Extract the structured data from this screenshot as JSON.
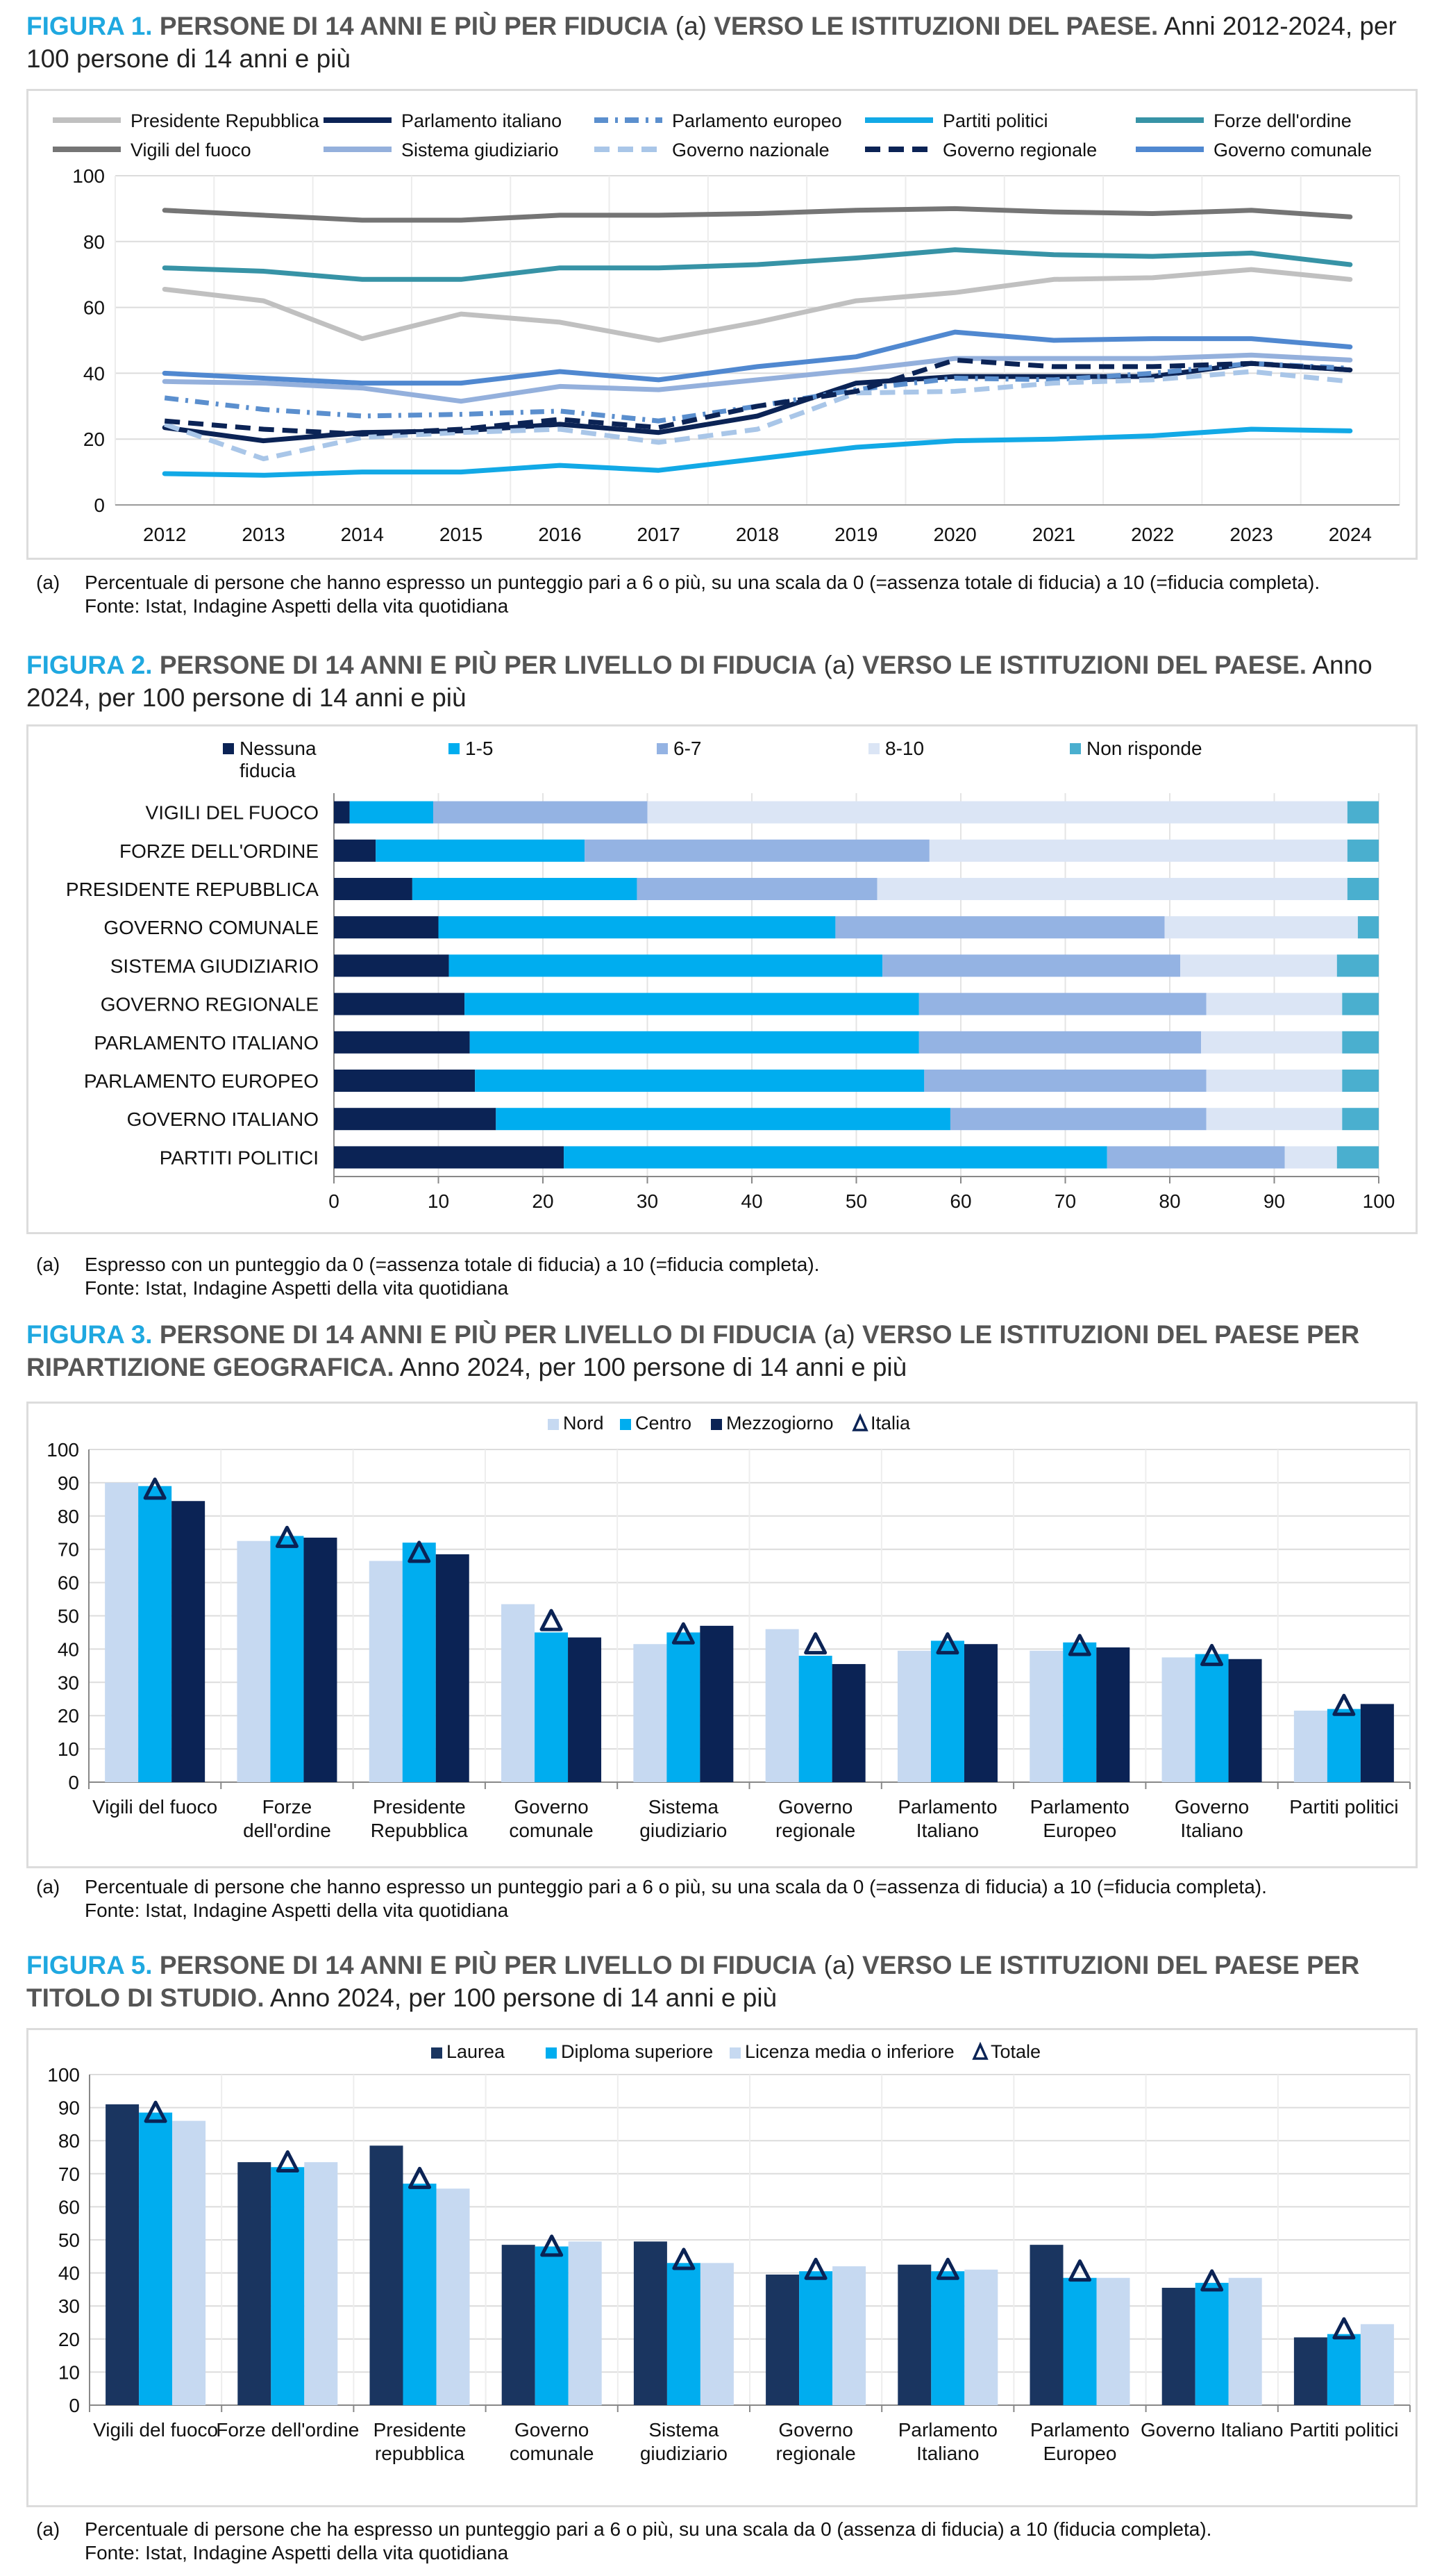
{
  "colors": {
    "accent": "#1fa8e0",
    "navy": "#0b2355",
    "cyan": "#00adef",
    "light": "#c6d9f1",
    "grid": "#d9d9d9"
  },
  "figure1": {
    "label": "FIGURA 1.",
    "title_bold_a": "PERSONE DI 14 ANNI E PIÙ PER FIDUCIA",
    "title_note": " (a) ",
    "title_bold_b": "VERSO LE ISTITUZIONI DEL PAESE.",
    "title_regular": " Anni 2012-2024, per 100 persone di 14 anni e più",
    "note_label": "(a)",
    "note_text": "Percentuale di persone che hanno espresso un punteggio pari a 6 o più, su una scala da 0 (=assenza totale di fiducia) a 10 (=fiducia completa).",
    "source": "Fonte: Istat, Indagine Aspetti della vita quotidiana"
  },
  "figure2": {
    "label": "FIGURA 2.",
    "title_bold_a": "PERSONE DI 14 ANNI E PIÙ PER LIVELLO DI FIDUCIA",
    "title_note": " (a) ",
    "title_bold_b": "VERSO LE ISTITUZIONI DEL PAESE.",
    "title_regular": " Anno 2024, per 100 persone di 14 anni e più",
    "note_label": "(a)",
    "note_text": "Espresso con un punteggio da 0 (=assenza totale di fiducia) a 10 (=fiducia completa).",
    "source": "Fonte: Istat, Indagine Aspetti della vita quotidiana"
  },
  "figure3": {
    "label": "FIGURA 3.",
    "title_bold_a": "PERSONE DI 14 ANNI E PIÙ PER LIVELLO DI FIDUCIA",
    "title_note": " (a) ",
    "title_bold_b": "VERSO LE ISTITUZIONI DEL PAESE PER RIPARTIZIONE GEOGRAFICA.",
    "title_regular": " Anno 2024, per 100 persone di 14 anni e più",
    "note_label": "(a)",
    "note_text": "Percentuale di persone che hanno espresso un punteggio pari a 6 o più, su una scala da 0 (=assenza di fiducia) a 10 (=fiducia completa).",
    "source": "Fonte: Istat, Indagine Aspetti della vita quotidiana"
  },
  "figure5": {
    "label": "FIGURA 5.",
    "title_bold_a": "PERSONE DI 14 ANNI E PIÙ PER LIVELLO DI FIDUCIA",
    "title_note": " (a) ",
    "title_bold_b": "VERSO LE ISTITUZIONI DEL PAESE PER TITOLO DI STUDIO.",
    "title_regular": " Anno 2024, per 100 persone di 14 anni e più",
    "note_label": "(a)",
    "note_text": "Percentuale di persone che ha espresso un punteggio pari a 6 o più, su una scala da 0 (assenza di fiducia) a 10 (fiducia completa).",
    "source": "Fonte: Istat, Indagine Aspetti della vita quotidiana"
  },
  "chart_data": [
    {
      "type": "line",
      "x": [
        "2012",
        "2013",
        "2014",
        "2015",
        "2016",
        "2017",
        "2018",
        "2019",
        "2020",
        "2021",
        "2022",
        "2023",
        "2024"
      ],
      "ylim": [
        0,
        100
      ],
      "yticks": [
        0,
        20,
        40,
        60,
        80,
        100
      ],
      "grid": true,
      "legend": "top",
      "series": [
        {
          "name": "Presidente Repubblica",
          "color": "#c0c0c0",
          "dash": "solid",
          "values": [
            65.5,
            62,
            50.5,
            58,
            55.5,
            50,
            55.5,
            62,
            64.5,
            68.5,
            69,
            71.5,
            68.5
          ]
        },
        {
          "name": "Parlamento italiano",
          "color": "#0b2355",
          "dash": "solid",
          "values": [
            23.5,
            19.5,
            22,
            22.5,
            24.5,
            22,
            27,
            37,
            39,
            39,
            39,
            43,
            41
          ]
        },
        {
          "name": "Parlamento europeo",
          "color": "#5b8fce",
          "dash": "dashdot",
          "values": [
            32.5,
            29,
            27,
            27.5,
            28.5,
            25.5,
            30,
            35,
            38.5,
            38,
            40,
            43,
            41.5
          ]
        },
        {
          "name": "Partiti politici",
          "color": "#12a9e6",
          "dash": "solid",
          "values": [
            9.5,
            9,
            10,
            10,
            12,
            10.5,
            14,
            17.5,
            19.5,
            20,
            21,
            23,
            22.5
          ]
        },
        {
          "name": "Forze dell'ordine",
          "color": "#3793a6",
          "dash": "solid",
          "values": [
            72,
            71,
            68.5,
            68.5,
            72,
            72,
            73,
            75,
            77.5,
            76,
            75.5,
            76.5,
            73
          ]
        },
        {
          "name": "Vigili del fuoco",
          "color": "#757575",
          "dash": "solid",
          "values": [
            89.5,
            88,
            86.5,
            86.5,
            88,
            88,
            88.5,
            89.5,
            90,
            89,
            88.5,
            89.5,
            87.5
          ]
        },
        {
          "name": "Sistema giudiziario",
          "color": "#94b0dc",
          "dash": "solid",
          "values": [
            37.5,
            37,
            35.5,
            31.5,
            36,
            35,
            38,
            41,
            44.5,
            44.5,
            44.5,
            45.5,
            44
          ]
        },
        {
          "name": "Governo  nazionale",
          "color": "#a9c6e8",
          "dash": "dash",
          "values": [
            24.5,
            14,
            20.5,
            22,
            23,
            19,
            23,
            34,
            34.5,
            37,
            38,
            40.5,
            37.5
          ]
        },
        {
          "name": "Governo regionale",
          "color": "#0b2355",
          "dash": "dash",
          "values": [
            25.5,
            23,
            21.5,
            23,
            26,
            23.5,
            30,
            34.5,
            44,
            42,
            42,
            43,
            41
          ]
        },
        {
          "name": "Governo comunale",
          "color": "#5088d0",
          "dash": "solid",
          "values": [
            40,
            38.5,
            37,
            37,
            40.5,
            38,
            42,
            45,
            52.5,
            50,
            50.5,
            50.5,
            48
          ]
        }
      ]
    },
    {
      "type": "bar",
      "orientation": "horizontal",
      "stacked": true,
      "categories": [
        "VIGILI DEL FUOCO",
        "FORZE DELL'ORDINE",
        "PRESIDENTE REPUBBLICA",
        "GOVERNO COMUNALE",
        "SISTEMA GIUDIZIARIO",
        "GOVERNO REGIONALE",
        "PARLAMENTO ITALIANO",
        "PARLAMENTO EUROPEO",
        "GOVERNO ITALIANO",
        "PARTITI POLITICI"
      ],
      "xlim": [
        0,
        100
      ],
      "xticks": [
        0,
        10,
        20,
        30,
        40,
        50,
        60,
        70,
        80,
        90,
        100
      ],
      "legend": "top",
      "series": [
        {
          "name": "Nessuna fiducia",
          "color": "#0b2355",
          "values": [
            1.5,
            4,
            7.5,
            10,
            11,
            12.5,
            13,
            13.5,
            15.5,
            22
          ]
        },
        {
          "name": "1-5",
          "color": "#00adef",
          "values": [
            8,
            20,
            21.5,
            38,
            41.5,
            43.5,
            43,
            43,
            43.5,
            52
          ]
        },
        {
          "name": "6-7",
          "color": "#94b3e3",
          "values": [
            20.5,
            33,
            23,
            31.5,
            28.5,
            27.5,
            27,
            27,
            24.5,
            17
          ]
        },
        {
          "name": "8-10",
          "color": "#dbe5f5",
          "values": [
            67,
            40,
            45,
            18.5,
            15,
            13,
            13.5,
            13,
            13,
            5
          ]
        },
        {
          "name": "Non risponde",
          "color": "#4aafcf",
          "values": [
            3,
            3,
            3,
            2,
            4,
            3.5,
            3.5,
            3.5,
            3.5,
            4
          ]
        }
      ]
    },
    {
      "type": "bar",
      "categories": [
        "Vigili del fuoco",
        "Forze dell'ordine",
        "Presidente Repubblica",
        "Governo comunale",
        "Sistema giudiziario",
        "Governo regionale",
        "Parlamento Italiano",
        "Parlamento Europeo",
        "Governo Italiano",
        "Partiti politici"
      ],
      "category_lines": [
        [
          "Vigili del fuoco"
        ],
        [
          "Forze",
          "dell'ordine"
        ],
        [
          "Presidente",
          "Repubblica"
        ],
        [
          "Governo",
          "comunale"
        ],
        [
          "Sistema",
          "giudiziario"
        ],
        [
          "Governo",
          "regionale"
        ],
        [
          "Parlamento",
          "Italiano"
        ],
        [
          "Parlamento",
          "Europeo"
        ],
        [
          "Governo",
          "Italiano"
        ],
        [
          "Partiti politici"
        ]
      ],
      "ylim": [
        0,
        100
      ],
      "yticks": [
        0,
        10,
        20,
        30,
        40,
        50,
        60,
        70,
        80,
        90,
        100
      ],
      "legend": "top",
      "series": [
        {
          "name": "Nord",
          "color": "#c6d9f1",
          "values": [
            90,
            72.5,
            66.5,
            53.5,
            41.5,
            46,
            39.5,
            39.5,
            37.5,
            21.5
          ]
        },
        {
          "name": "Centro",
          "color": "#00adef",
          "values": [
            89,
            74,
            72,
            45,
            45,
            38,
            42.5,
            42,
            38.5,
            22
          ]
        },
        {
          "name": "Mezzogiorno",
          "color": "#0b2355",
          "values": [
            84.5,
            73.5,
            68.5,
            43.5,
            47,
            35.5,
            41.5,
            40.5,
            37,
            23.5
          ]
        }
      ],
      "markers": {
        "name": "Italia",
        "values": [
          87.5,
          73,
          68.5,
          48,
          44,
          41,
          41,
          40.5,
          37.5,
          22.5
        ]
      }
    },
    {
      "type": "bar",
      "categories": [
        "Vigili del fuoco",
        "Forze dell'ordine",
        "Presidente repubblica",
        "Governo comunale",
        "Sistema giudiziario",
        "Governo regionale",
        "Parlamento Italiano",
        "Parlamento Europeo",
        "Governo Italiano",
        "Partiti politici"
      ],
      "category_lines": [
        [
          "Vigili del fuoco"
        ],
        [
          "Forze dell'ordine"
        ],
        [
          "Presidente",
          "repubblica"
        ],
        [
          "Governo",
          "comunale"
        ],
        [
          "Sistema",
          "giudiziario"
        ],
        [
          "Governo",
          "regionale"
        ],
        [
          "Parlamento",
          "Italiano"
        ],
        [
          "Parlamento",
          "Europeo"
        ],
        [
          "Governo Italiano"
        ],
        [
          "Partiti politici"
        ]
      ],
      "ylim": [
        0,
        100
      ],
      "yticks": [
        0,
        10,
        20,
        30,
        40,
        50,
        60,
        70,
        80,
        90,
        100
      ],
      "legend": "top",
      "series": [
        {
          "name": "Laurea",
          "color": "#1a3560",
          "values": [
            91,
            73.5,
            78.5,
            48.5,
            49.5,
            39.5,
            42.5,
            48.5,
            35.5,
            20.5
          ]
        },
        {
          "name": "Diploma superiore",
          "color": "#00adef",
          "values": [
            88.5,
            72,
            67,
            48,
            43,
            40.5,
            40.5,
            38.5,
            37,
            21.5
          ]
        },
        {
          "name": "Licenza media o inferiore",
          "color": "#c6d9f1",
          "values": [
            86,
            73.5,
            65.5,
            49.5,
            43,
            42,
            41,
            38.5,
            38.5,
            24.5
          ]
        }
      ],
      "markers": {
        "name": "Totale",
        "values": [
          88,
          73,
          68,
          47.5,
          43.5,
          40.5,
          40.5,
          40,
          37,
          22.5
        ]
      }
    }
  ]
}
